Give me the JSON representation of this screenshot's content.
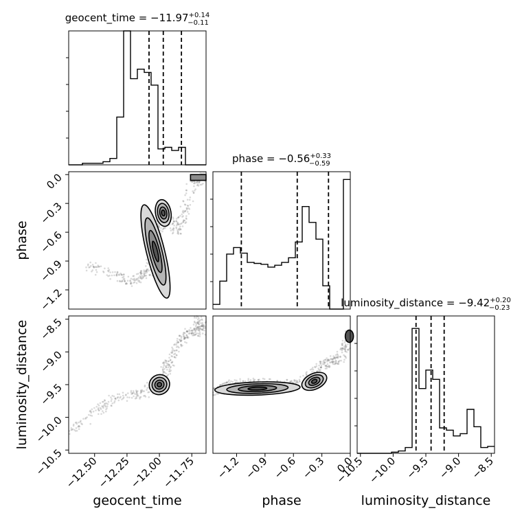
{
  "chart_data": {
    "type": "corner",
    "parameters": [
      "geocent_time",
      "phase",
      "luminosity_distance"
    ],
    "panels": {
      "geocent_time": {
        "title_prefix": "geocent_time = ",
        "median": "−11.97",
        "plus": "+0.14",
        "minus": "−0.11",
        "quantiles": [
          -12.08,
          -11.97,
          -11.83
        ],
        "range": [
          -12.7,
          -11.64
        ],
        "bin_edges": [
          -12.7,
          -12.647,
          -12.594,
          -12.541,
          -12.488,
          -12.435,
          -12.382,
          -12.329,
          -12.276,
          -12.223,
          -12.17,
          -12.117,
          -12.064,
          -12.011,
          -11.958,
          -11.905,
          -11.852,
          -11.799,
          -11.746,
          -11.693,
          -11.64
        ],
        "counts": [
          0,
          0,
          1,
          1,
          1,
          2,
          4,
          30,
          84,
          54,
          60,
          58,
          50,
          10,
          11,
          9,
          11,
          0,
          0,
          0
        ]
      },
      "phase": {
        "title_prefix": "phase = ",
        "median": "−0.56",
        "plus": "+0.33",
        "minus": "−0.59",
        "quantiles": [
          -1.15,
          -0.56,
          -0.23
        ],
        "range": [
          -1.45,
          0.0
        ],
        "bin_edges": [
          -1.45,
          -1.3775,
          -1.305,
          -1.2325,
          -1.16,
          -1.0875,
          -1.015,
          -0.9425,
          -0.87,
          -0.7975,
          -0.725,
          -0.6525,
          -0.58,
          -0.5075,
          -0.435,
          -0.3625,
          -0.29,
          -0.2175,
          -0.145,
          -0.0725,
          0.0
        ],
        "counts": [
          5,
          30,
          59,
          66,
          60,
          50,
          49,
          48,
          45,
          47,
          50,
          55,
          72,
          110,
          93,
          75,
          25,
          0,
          0,
          139
        ]
      },
      "luminosity_distance": {
        "title_prefix": "luminosity_distance = ",
        "median": "−9.42",
        "plus": "+0.20",
        "minus": "−0.23",
        "quantiles": [
          -9.65,
          -9.42,
          -9.22
        ],
        "range": [
          -10.55,
          -8.45
        ],
        "bin_edges": [
          -10.55,
          -10.445,
          -10.34,
          -10.235,
          -10.13,
          -10.025,
          -9.92,
          -9.815,
          -9.71,
          -9.605,
          -9.5,
          -9.395,
          -9.29,
          -9.185,
          -9.08,
          -8.975,
          -8.87,
          -8.765,
          -8.66,
          -8.555,
          -8.45
        ],
        "counts": [
          0,
          0,
          0,
          0,
          0,
          1,
          2,
          5,
          108,
          56,
          72,
          64,
          22,
          20,
          15,
          17,
          38,
          23,
          5,
          6
        ]
      }
    },
    "axes": {
      "phase_ticks": [
        0.0,
        -0.3,
        -0.6,
        -0.9,
        -1.2
      ],
      "phase_ticklabels": [
        "0.0",
        "−0.3",
        "−0.6",
        "−0.9",
        "−1.2"
      ],
      "ld_ticks": [
        -8.5,
        -9.0,
        -9.5,
        -10.0,
        -10.5
      ],
      "ld_ticklabels": [
        "−8.5",
        "−9.0",
        "−9.5",
        "−10.0",
        "−10.5"
      ],
      "gt_ticks": [
        -12.5,
        -12.25,
        -12.0,
        -11.75
      ],
      "gt_ticklabels": [
        "−12.50",
        "−12.25",
        "−12.00",
        "−11.75"
      ],
      "phase_x_ticks": [
        -1.2,
        -0.9,
        -0.6,
        -0.3,
        0.0
      ],
      "phase_x_ticklabels": [
        "−1.2",
        "−0.9",
        "−0.6",
        "−0.3",
        "0.0"
      ],
      "ld_x_ticks": [
        -10.5,
        -10.0,
        -9.5,
        -9.0,
        -8.5
      ],
      "ld_x_ticklabels": [
        "−10.5",
        "−10.0",
        "−9.5",
        "−9.0",
        "−8.5"
      ]
    },
    "labels": {
      "x": [
        "geocent_time",
        "phase",
        "luminosity_distance"
      ],
      "y": [
        "phase",
        "luminosity_distance"
      ]
    },
    "grid": true,
    "contour_levels": 4
  }
}
